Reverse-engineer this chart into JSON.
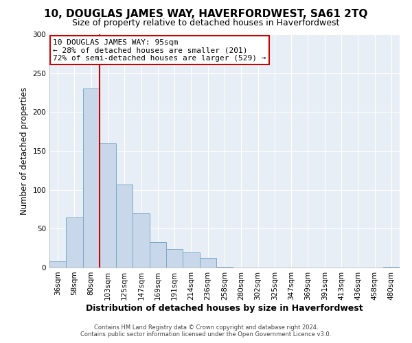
{
  "title": "10, DOUGLAS JAMES WAY, HAVERFORDWEST, SA61 2TQ",
  "subtitle": "Size of property relative to detached houses in Haverfordwest",
  "xlabel": "Distribution of detached houses by size in Haverfordwest",
  "ylabel": "Number of detached properties",
  "categories": [
    "36sqm",
    "58sqm",
    "80sqm",
    "103sqm",
    "125sqm",
    "147sqm",
    "169sqm",
    "191sqm",
    "214sqm",
    "236sqm",
    "258sqm",
    "280sqm",
    "302sqm",
    "325sqm",
    "347sqm",
    "369sqm",
    "391sqm",
    "413sqm",
    "436sqm",
    "458sqm",
    "480sqm"
  ],
  "values": [
    8,
    64,
    230,
    160,
    107,
    70,
    33,
    24,
    19,
    12,
    1,
    0,
    0,
    0,
    0,
    0,
    0,
    0,
    0,
    0,
    1
  ],
  "bar_color": "#c8d8ea",
  "bar_edge_color": "#7aaac8",
  "vline_color": "#cc0000",
  "vline_x_index": 2,
  "ylim": [
    0,
    300
  ],
  "yticks": [
    0,
    50,
    100,
    150,
    200,
    250,
    300
  ],
  "annotation_title": "10 DOUGLAS JAMES WAY: 95sqm",
  "annotation_line1": "← 28% of detached houses are smaller (201)",
  "annotation_line2": "72% of semi-detached houses are larger (529) →",
  "annotation_box_color": "#ffffff",
  "annotation_border_color": "#cc0000",
  "footer_line1": "Contains HM Land Registry data © Crown copyright and database right 2024.",
  "footer_line2": "Contains public sector information licensed under the Open Government Licence v3.0.",
  "bg_color": "#ffffff",
  "plot_bg_color": "#e8eef5",
  "grid_color": "#ffffff",
  "title_fontsize": 11,
  "subtitle_fontsize": 9
}
